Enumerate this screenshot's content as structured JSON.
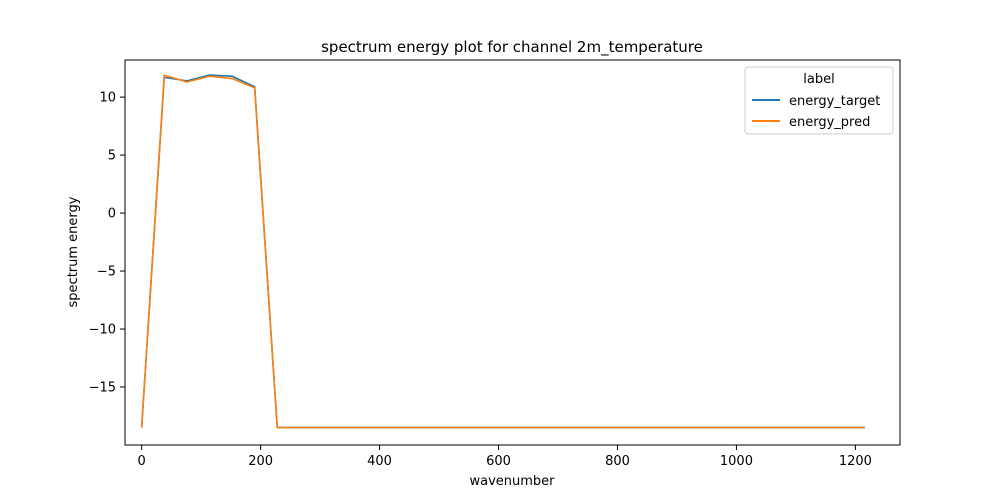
{
  "chart_data": {
    "type": "line",
    "title": "spectrum energy plot for channel 2m_temperature",
    "xlabel": "wavenumber",
    "ylabel": "spectrum energy",
    "xlim": [
      -28,
      1275
    ],
    "ylim": [
      -20,
      13.2
    ],
    "xticks": [
      0,
      200,
      400,
      600,
      800,
      1000,
      1200
    ],
    "yticks": [
      -15,
      -10,
      -5,
      0,
      5,
      10
    ],
    "xtick_labels": [
      "0",
      "200",
      "400",
      "600",
      "800",
      "1000",
      "1200"
    ],
    "ytick_labels": [
      "−15",
      "−10",
      "−5",
      "0",
      "5",
      "10"
    ],
    "grid": false,
    "legend": {
      "title": "label",
      "placement": "top-right"
    },
    "x": [
      0,
      38,
      76,
      114,
      152,
      190,
      228,
      266,
      400,
      600,
      800,
      1000,
      1216
    ],
    "series": [
      {
        "name": "energy_target",
        "color": "#1f77b4",
        "values": [
          -18.5,
          11.7,
          11.4,
          11.9,
          11.8,
          10.9,
          -18.5,
          -18.5,
          -18.5,
          -18.5,
          -18.5,
          -18.5,
          -18.5
        ]
      },
      {
        "name": "energy_pred",
        "color": "#ff7f0e",
        "values": [
          -18.5,
          11.9,
          11.3,
          11.8,
          11.6,
          10.8,
          -18.5,
          -18.5,
          -18.5,
          -18.5,
          -18.5,
          -18.5,
          -18.5
        ]
      }
    ]
  }
}
